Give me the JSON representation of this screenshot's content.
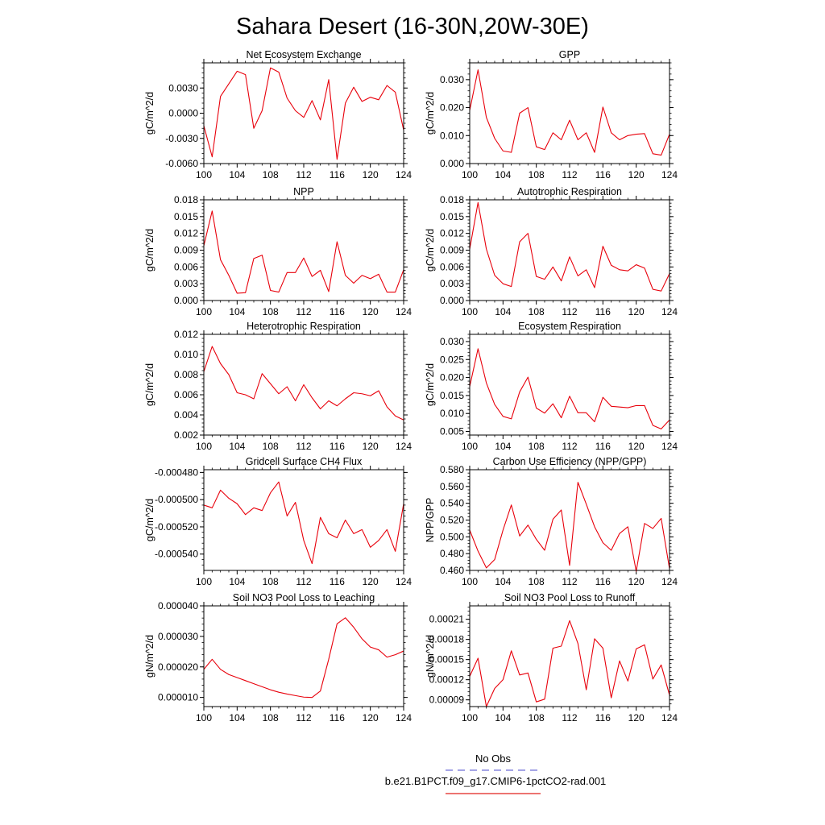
{
  "title": "Sahara Desert (16-30N,20W-30E)",
  "legend": {
    "entries": [
      {
        "label": "No Obs",
        "color": "#6f6fd8",
        "dash": true
      },
      {
        "label": "b.e21.B1PCT.f09_g17.CMIP6-1pctCO2-rad.001",
        "color": "#e0201c",
        "dash": false
      }
    ]
  },
  "colors": {
    "series": "#e8000b",
    "frame": "#000000"
  },
  "chart_data": [
    {
      "type": "line",
      "title": "Net Ecosystem Exchange",
      "ylabel": "gC/m^2/d",
      "xlabel": "",
      "xlim": [
        100,
        124
      ],
      "ylim": [
        -0.006,
        0.006
      ],
      "xticks": [
        "100",
        "104",
        "108",
        "112",
        "116",
        "120",
        "124"
      ],
      "yticks": [
        "-0.0060",
        "-0.0030",
        "0.0000",
        "0.0030"
      ],
      "ytick_values": [
        -0.006,
        -0.003,
        0.0,
        0.003
      ],
      "x": [
        100,
        101,
        102,
        103,
        104,
        105,
        106,
        107,
        108,
        109,
        110,
        111,
        112,
        113,
        114,
        115,
        116,
        117,
        118,
        119,
        120,
        121,
        122,
        123,
        124
      ],
      "series": [
        {
          "values": [
            -0.0015,
            -0.0052,
            0.002,
            0.0035,
            0.005,
            0.0046,
            -0.0018,
            0.0003,
            0.0054,
            0.0049,
            0.0018,
            0.0003,
            -0.0005,
            0.0015,
            -0.0008,
            0.004,
            -0.0055,
            0.0012,
            0.0031,
            0.0014,
            0.0019,
            0.0016,
            0.0033,
            0.0025,
            -0.002
          ]
        }
      ]
    },
    {
      "type": "line",
      "title": "GPP",
      "ylabel": "gC/m^2/d",
      "xlabel": "",
      "xlim": [
        100,
        124
      ],
      "ylim": [
        0,
        0.036
      ],
      "xticks": [
        "100",
        "104",
        "108",
        "112",
        "116",
        "120",
        "124"
      ],
      "yticks": [
        "0.000",
        "0.010",
        "0.020",
        "0.030"
      ],
      "ytick_values": [
        0.0,
        0.01,
        0.02,
        0.03
      ],
      "x": [
        100,
        101,
        102,
        103,
        104,
        105,
        106,
        107,
        108,
        109,
        110,
        111,
        112,
        113,
        114,
        115,
        116,
        117,
        118,
        119,
        120,
        121,
        122,
        123,
        124
      ],
      "series": [
        {
          "values": [
            0.019,
            0.0335,
            0.0165,
            0.009,
            0.0045,
            0.004,
            0.018,
            0.02,
            0.006,
            0.005,
            0.011,
            0.0085,
            0.0155,
            0.0085,
            0.011,
            0.004,
            0.0202,
            0.011,
            0.0085,
            0.01,
            0.0105,
            0.0107,
            0.0035,
            0.003,
            0.0105
          ]
        }
      ]
    },
    {
      "type": "line",
      "title": "NPP",
      "ylabel": "gC/m^2/d",
      "xlabel": "",
      "xlim": [
        100,
        124
      ],
      "ylim": [
        0,
        0.018
      ],
      "xticks": [
        "100",
        "104",
        "108",
        "112",
        "116",
        "120",
        "124"
      ],
      "yticks": [
        "0.000",
        "0.003",
        "0.006",
        "0.009",
        "0.012",
        "0.015",
        "0.018"
      ],
      "ytick_values": [
        0.0,
        0.003,
        0.006,
        0.009,
        0.012,
        0.015,
        0.018
      ],
      "x": [
        100,
        101,
        102,
        103,
        104,
        105,
        106,
        107,
        108,
        109,
        110,
        111,
        112,
        113,
        114,
        115,
        116,
        117,
        118,
        119,
        120,
        121,
        122,
        123,
        124
      ],
      "series": [
        {
          "values": [
            0.0098,
            0.016,
            0.0073,
            0.0045,
            0.0013,
            0.0014,
            0.0075,
            0.0081,
            0.0018,
            0.0015,
            0.005,
            0.005,
            0.0076,
            0.0043,
            0.0054,
            0.0016,
            0.0105,
            0.0045,
            0.0031,
            0.0045,
            0.0039,
            0.0047,
            0.0015,
            0.0015,
            0.0055
          ]
        }
      ]
    },
    {
      "type": "line",
      "title": "Autotrophic Respiration",
      "ylabel": "gC/m^2/d",
      "xlabel": "",
      "xlim": [
        100,
        124
      ],
      "ylim": [
        0,
        0.018
      ],
      "xticks": [
        "100",
        "104",
        "108",
        "112",
        "116",
        "120",
        "124"
      ],
      "yticks": [
        "0.000",
        "0.003",
        "0.006",
        "0.009",
        "0.012",
        "0.015",
        "0.018"
      ],
      "ytick_values": [
        0.0,
        0.003,
        0.006,
        0.009,
        0.012,
        0.015,
        0.018
      ],
      "x": [
        100,
        101,
        102,
        103,
        104,
        105,
        106,
        107,
        108,
        109,
        110,
        111,
        112,
        113,
        114,
        115,
        116,
        117,
        118,
        119,
        120,
        121,
        122,
        123,
        124
      ],
      "series": [
        {
          "values": [
            0.0092,
            0.0175,
            0.0092,
            0.0045,
            0.003,
            0.0025,
            0.0105,
            0.012,
            0.0043,
            0.0038,
            0.006,
            0.0035,
            0.0078,
            0.0044,
            0.0055,
            0.0023,
            0.0097,
            0.0063,
            0.0055,
            0.0053,
            0.0064,
            0.0058,
            0.002,
            0.0017,
            0.0048
          ]
        }
      ]
    },
    {
      "type": "line",
      "title": "Heterotrophic Respiration",
      "ylabel": "gC/m^2/d",
      "xlabel": "",
      "xlim": [
        100,
        124
      ],
      "ylim": [
        0.002,
        0.012
      ],
      "xticks": [
        "100",
        "104",
        "108",
        "112",
        "116",
        "120",
        "124"
      ],
      "yticks": [
        "0.002",
        "0.004",
        "0.006",
        "0.008",
        "0.010",
        "0.012"
      ],
      "ytick_values": [
        0.002,
        0.004,
        0.006,
        0.008,
        0.01,
        0.012
      ],
      "x": [
        100,
        101,
        102,
        103,
        104,
        105,
        106,
        107,
        108,
        109,
        110,
        111,
        112,
        113,
        114,
        115,
        116,
        117,
        118,
        119,
        120,
        121,
        122,
        123,
        124
      ],
      "series": [
        {
          "values": [
            0.0083,
            0.0108,
            0.0091,
            0.008,
            0.0062,
            0.006,
            0.0056,
            0.0081,
            0.0071,
            0.0061,
            0.0068,
            0.0054,
            0.007,
            0.0057,
            0.0046,
            0.0054,
            0.0049,
            0.0056,
            0.0062,
            0.0061,
            0.0059,
            0.0064,
            0.0048,
            0.0039,
            0.0035
          ]
        }
      ]
    },
    {
      "type": "line",
      "title": "Ecosystem Respiration",
      "ylabel": "gC/m^2/d",
      "xlabel": "",
      "xlim": [
        100,
        124
      ],
      "ylim": [
        0.004,
        0.032
      ],
      "xticks": [
        "100",
        "104",
        "108",
        "112",
        "116",
        "120",
        "124"
      ],
      "yticks": [
        "0.005",
        "0.010",
        "0.015",
        "0.020",
        "0.025",
        "0.030"
      ],
      "ytick_values": [
        0.005,
        0.01,
        0.015,
        0.02,
        0.025,
        0.03
      ],
      "x": [
        100,
        101,
        102,
        103,
        104,
        105,
        106,
        107,
        108,
        109,
        110,
        111,
        112,
        113,
        114,
        115,
        116,
        117,
        118,
        119,
        120,
        121,
        122,
        123,
        124
      ],
      "series": [
        {
          "values": [
            0.0175,
            0.028,
            0.0185,
            0.0125,
            0.0092,
            0.0085,
            0.016,
            0.0201,
            0.0115,
            0.0101,
            0.0127,
            0.0088,
            0.0148,
            0.0102,
            0.0102,
            0.0077,
            0.0145,
            0.012,
            0.0118,
            0.0116,
            0.0122,
            0.0122,
            0.0067,
            0.0057,
            0.0082
          ]
        }
      ]
    },
    {
      "type": "line",
      "title": "Gridcell Surface CH4 Flux",
      "ylabel": "gC/m^2/d",
      "xlabel": "",
      "xlim": [
        100,
        124
      ],
      "ylim": [
        -0.000552,
        -0.000478
      ],
      "xticks": [
        "100",
        "104",
        "108",
        "112",
        "116",
        "120",
        "124"
      ],
      "yticks": [
        "-0.000540",
        "-0.000520",
        "-0.000500",
        "-0.000480"
      ],
      "ytick_values": [
        -0.00054,
        -0.00052,
        -0.0005,
        -0.00048
      ],
      "x": [
        100,
        101,
        102,
        103,
        104,
        105,
        106,
        107,
        108,
        109,
        110,
        111,
        112,
        113,
        114,
        115,
        116,
        117,
        118,
        119,
        120,
        121,
        122,
        123,
        124
      ],
      "series": [
        {
          "values": [
            -0.000504,
            -0.000506,
            -0.000493,
            -0.000499,
            -0.000503,
            -0.000511,
            -0.000506,
            -0.000508,
            -0.000495,
            -0.000487,
            -0.000512,
            -0.000502,
            -0.00053,
            -0.000547,
            -0.000513,
            -0.000525,
            -0.000528,
            -0.000515,
            -0.000525,
            -0.000522,
            -0.000535,
            -0.00053,
            -0.000522,
            -0.000538,
            -0.000503
          ]
        }
      ]
    },
    {
      "type": "line",
      "title": "Carbon Use Efficiency (NPP/GPP)",
      "ylabel": "NPP/GPP",
      "xlabel": "",
      "xlim": [
        100,
        124
      ],
      "ylim": [
        0.46,
        0.58
      ],
      "xticks": [
        "100",
        "104",
        "108",
        "112",
        "116",
        "120",
        "124"
      ],
      "yticks": [
        "0.460",
        "0.480",
        "0.500",
        "0.520",
        "0.540",
        "0.560",
        "0.580"
      ],
      "ytick_values": [
        0.46,
        0.48,
        0.5,
        0.52,
        0.54,
        0.56,
        0.58
      ],
      "x": [
        100,
        101,
        102,
        103,
        104,
        105,
        106,
        107,
        108,
        109,
        110,
        111,
        112,
        113,
        114,
        115,
        116,
        117,
        118,
        119,
        120,
        121,
        122,
        123,
        124
      ],
      "series": [
        {
          "values": [
            0.508,
            0.483,
            0.463,
            0.473,
            0.508,
            0.538,
            0.501,
            0.514,
            0.497,
            0.484,
            0.521,
            0.532,
            0.466,
            0.565,
            0.539,
            0.512,
            0.493,
            0.484,
            0.504,
            0.512,
            0.459,
            0.516,
            0.51,
            0.522,
            0.462
          ]
        }
      ]
    },
    {
      "type": "line",
      "title": "Soil NO3 Pool Loss to Leaching",
      "ylabel": "gN/m^2/d",
      "xlabel": "",
      "xlim": [
        100,
        124
      ],
      "ylim": [
        7e-06,
        4e-05
      ],
      "xticks": [
        "100",
        "104",
        "108",
        "112",
        "116",
        "120",
        "124"
      ],
      "yticks": [
        "0.000010",
        "0.000020",
        "0.000030",
        "0.000040"
      ],
      "ytick_values": [
        1e-05,
        2e-05,
        3e-05,
        4e-05
      ],
      "x": [
        100,
        101,
        102,
        103,
        104,
        105,
        106,
        107,
        108,
        109,
        110,
        111,
        112,
        113,
        114,
        115,
        116,
        117,
        118,
        119,
        120,
        121,
        122,
        123,
        124
      ],
      "series": [
        {
          "values": [
            1.92e-05,
            2.25e-05,
            1.92e-05,
            1.75e-05,
            1.65e-05,
            1.55e-05,
            1.45e-05,
            1.35e-05,
            1.25e-05,
            1.17e-05,
            1.11e-05,
            1.06e-05,
            1.01e-05,
            1e-05,
            1.21e-05,
            2.25e-05,
            3.41e-05,
            3.61e-05,
            3.3e-05,
            2.92e-05,
            2.65e-05,
            2.56e-05,
            2.32e-05,
            2.4e-05,
            2.52e-05
          ]
        }
      ]
    },
    {
      "type": "line",
      "title": "Soil NO3 Pool Loss to Runoff",
      "ylabel": "gN/m^2/d",
      "xlabel": "",
      "xlim": [
        100,
        124
      ],
      "ylim": [
        8e-05,
        0.00023
      ],
      "xticks": [
        "100",
        "104",
        "108",
        "112",
        "116",
        "120",
        "124"
      ],
      "yticks": [
        "0.00009",
        "0.00012",
        "0.00015",
        "0.00018",
        "0.00021"
      ],
      "ytick_values": [
        9e-05,
        0.00012,
        0.00015,
        0.00018,
        0.00021
      ],
      "x": [
        100,
        101,
        102,
        103,
        104,
        105,
        106,
        107,
        108,
        109,
        110,
        111,
        112,
        113,
        114,
        115,
        116,
        117,
        118,
        119,
        120,
        121,
        122,
        123,
        124
      ],
      "series": [
        {
          "values": [
            0.000125,
            0.000152,
            8e-05,
            0.000107,
            0.00012,
            0.000163,
            0.000127,
            0.00013,
            8.7e-05,
            9.1e-05,
            0.000167,
            0.00017,
            0.000208,
            0.000174,
            0.000105,
            0.000181,
            0.000167,
            9.3e-05,
            0.000148,
            0.000118,
            0.000166,
            0.000172,
            0.000121,
            0.000142,
            9.7e-05
          ]
        }
      ]
    }
  ]
}
